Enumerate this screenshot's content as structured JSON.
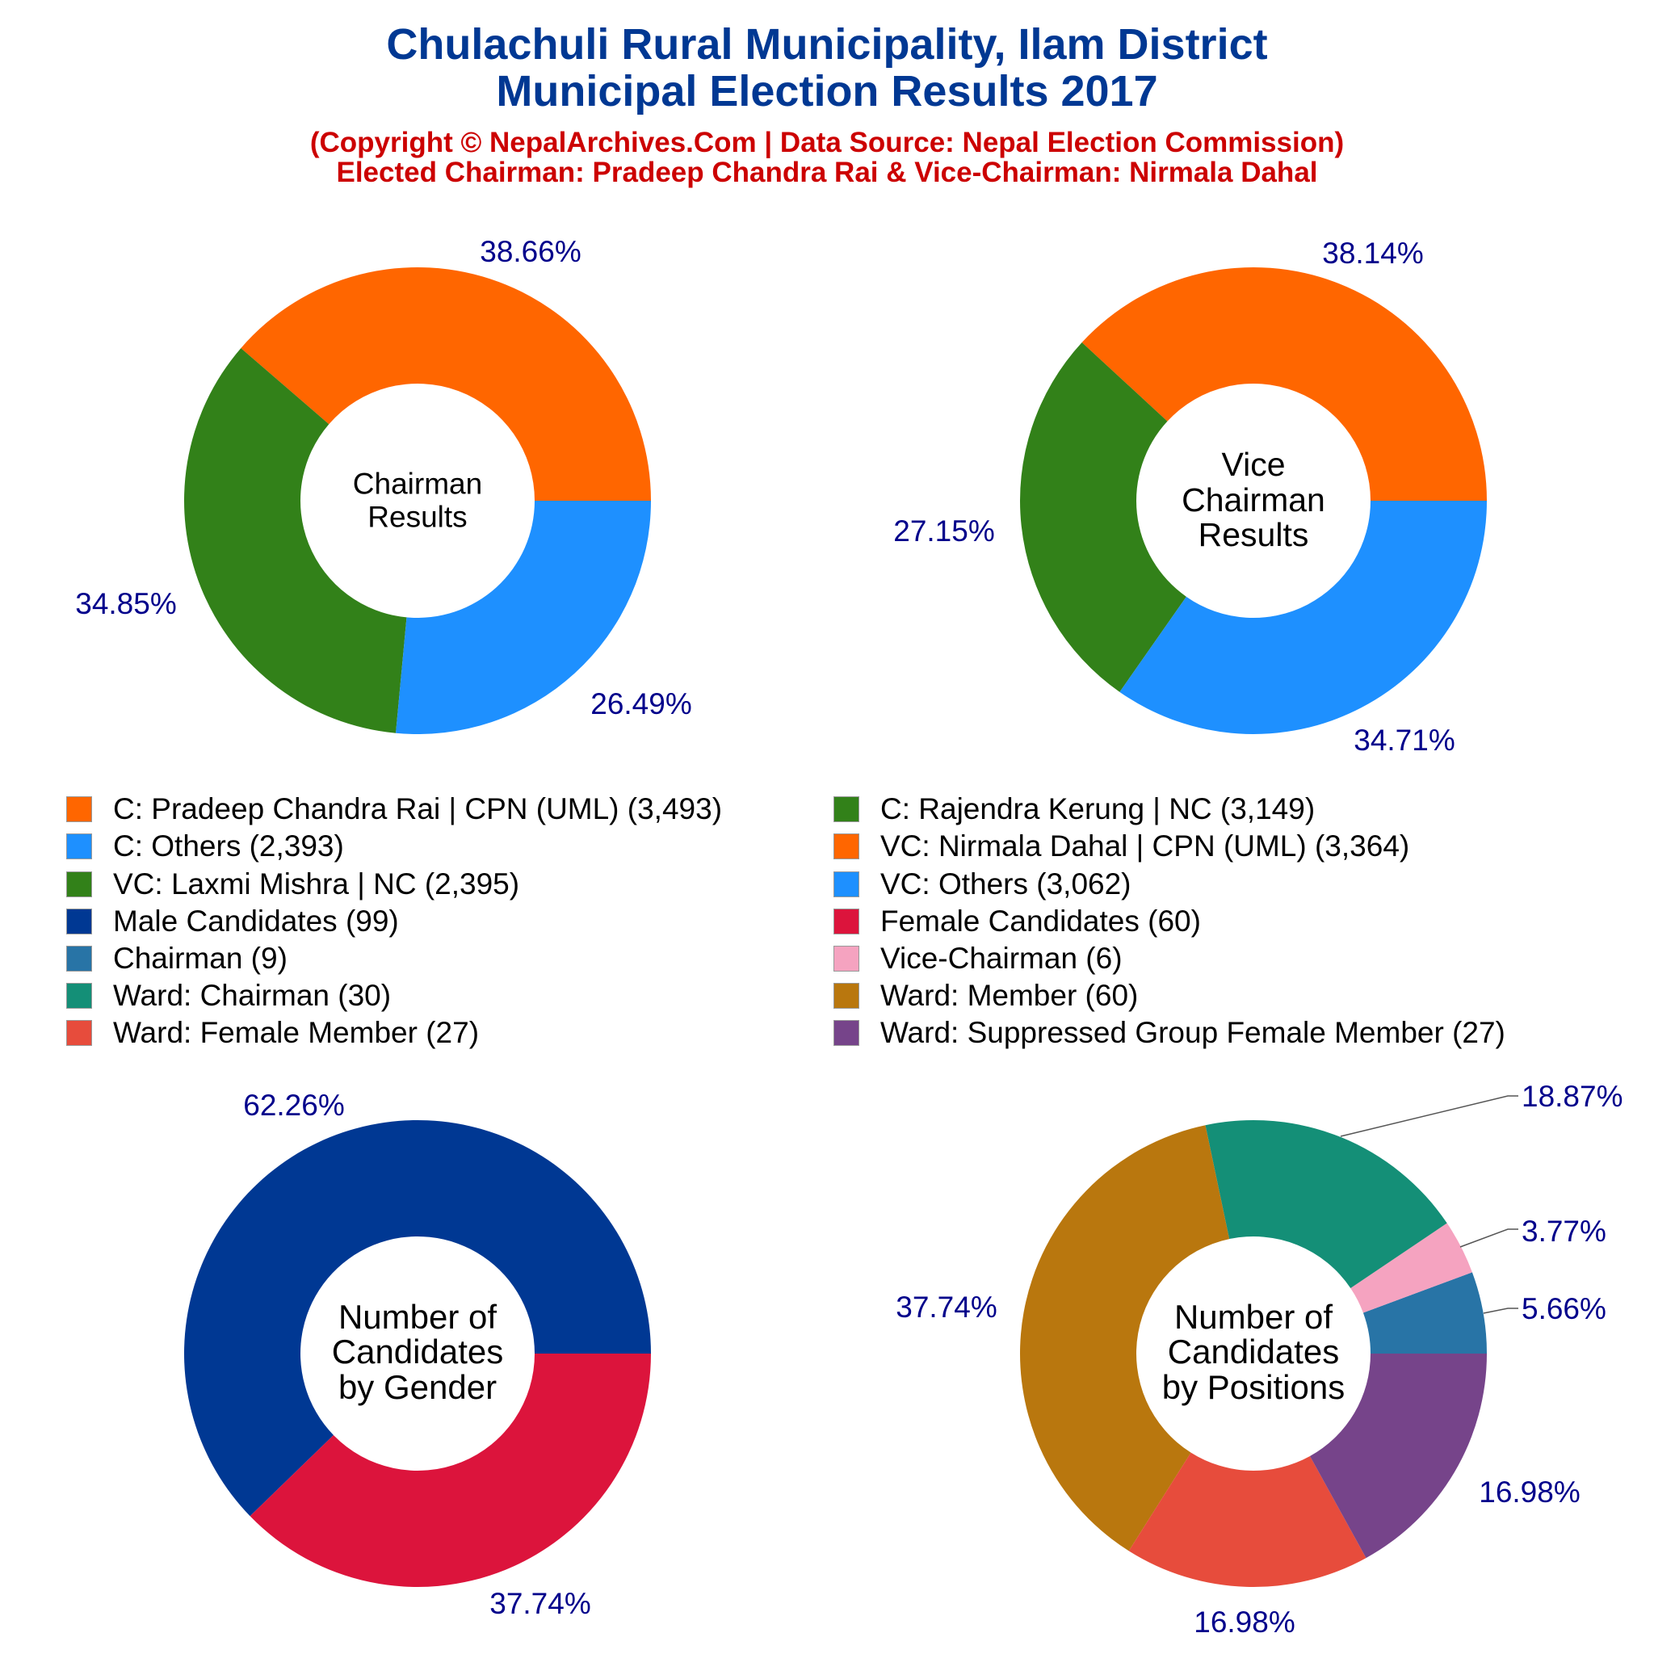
{
  "header": {
    "title_line1": "Chulachuli Rural Municipality, Ilam District",
    "title_line2": "Municipal Election Results 2017",
    "subtitle_line1": "(Copyright © NepalArchives.Com | Data Source: Nepal Election Commission)",
    "subtitle_line2": "Elected Chairman: Pradeep Chandra Rai & Vice-Chairman: Nirmala Dahal"
  },
  "colors": {
    "title": "#003893",
    "subtitle": "#CC0000",
    "pct_label": "#00008B"
  },
  "chart_data": [
    {
      "type": "pie",
      "donut": true,
      "center_label": [
        "Chairman",
        "Results"
      ],
      "start": "east",
      "direction": "counterclockwise",
      "slices": [
        {
          "name": "C: Pradeep Chandra Rai | CPN (UML)",
          "value": 3493,
          "pct": "38.66%",
          "color": "#FF6600"
        },
        {
          "name": "C: Rajendra Kerung | NC",
          "value": 3149,
          "pct": "34.85%",
          "color": "#328119"
        },
        {
          "name": "C: Others",
          "value": 2393,
          "pct": "26.49%",
          "color": "#1E90FF"
        }
      ]
    },
    {
      "type": "pie",
      "donut": true,
      "center_label": [
        "Vice",
        "Chairman",
        "Results"
      ],
      "start": "east",
      "direction": "counterclockwise",
      "slices": [
        {
          "name": "VC: Nirmala Dahal | CPN (UML)",
          "value": 3364,
          "pct": "38.14%",
          "color": "#FF6600"
        },
        {
          "name": "VC: Laxmi Mishra | NC",
          "value": 2395,
          "pct": "27.15%",
          "color": "#328119"
        },
        {
          "name": "VC: Others",
          "value": 3062,
          "pct": "34.71%",
          "color": "#1E90FF"
        }
      ]
    },
    {
      "type": "pie",
      "donut": true,
      "center_label": [
        "Number of",
        "Candidates",
        "by Gender"
      ],
      "start": "east",
      "direction": "counterclockwise",
      "slices": [
        {
          "name": "Male Candidates",
          "value": 99,
          "pct": "62.26%",
          "color": "#003893"
        },
        {
          "name": "Female Candidates",
          "value": 60,
          "pct": "37.74%",
          "color": "#DC143C"
        }
      ]
    },
    {
      "type": "pie",
      "donut": true,
      "center_label": [
        "Number of",
        "Candidates",
        "by Positions"
      ],
      "start": "east",
      "direction": "counterclockwise",
      "slices": [
        {
          "name": "Chairman",
          "value": 9,
          "pct": "5.66%",
          "color": "#2874A6"
        },
        {
          "name": "Vice-Chairman",
          "value": 6,
          "pct": "3.77%",
          "color": "#F5A3C0"
        },
        {
          "name": "Ward: Chairman",
          "value": 30,
          "pct": "18.87%",
          "color": "#148F77"
        },
        {
          "name": "Ward: Member",
          "value": 60,
          "pct": "37.74%",
          "color": "#B9770E"
        },
        {
          "name": "Ward: Female Member",
          "value": 27,
          "pct": "16.98%",
          "color": "#E74C3C"
        },
        {
          "name": "Ward: Suppressed Group Female Member",
          "value": 27,
          "pct": "16.98%",
          "color": "#76448A"
        }
      ]
    }
  ],
  "legend": [
    {
      "label": "C: Pradeep Chandra Rai | CPN (UML) (3,493)",
      "color": "#FF6600"
    },
    {
      "label": "C: Rajendra Kerung | NC (3,149)",
      "color": "#328119"
    },
    {
      "label": "C: Others (2,393)",
      "color": "#1E90FF"
    },
    {
      "label": "VC: Nirmala Dahal | CPN (UML) (3,364)",
      "color": "#FF6600"
    },
    {
      "label": "VC: Laxmi Mishra | NC (2,395)",
      "color": "#328119"
    },
    {
      "label": "VC: Others (3,062)",
      "color": "#1E90FF"
    },
    {
      "label": "Male Candidates (99)",
      "color": "#003893"
    },
    {
      "label": "Female Candidates (60)",
      "color": "#DC143C"
    },
    {
      "label": "Chairman (9)",
      "color": "#2874A6"
    },
    {
      "label": "Vice-Chairman (6)",
      "color": "#F5A3C0"
    },
    {
      "label": "Ward: Chairman (30)",
      "color": "#148F77"
    },
    {
      "label": "Ward: Member (60)",
      "color": "#B9770E"
    },
    {
      "label": "Ward: Female Member (27)",
      "color": "#E74C3C"
    },
    {
      "label": "Ward: Suppressed Group Female Member (27)",
      "color": "#76448A"
    }
  ]
}
